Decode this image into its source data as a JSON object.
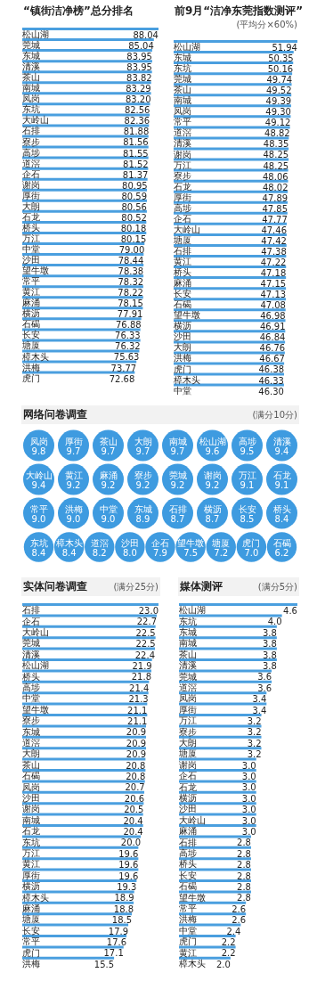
{
  "chart_data": [
    {
      "type": "bar",
      "orientation": "horizontal",
      "title": "“镇街洁净榜”总分排名",
      "color": "#4a9fdf",
      "categories": [
        "松山湖",
        "莞城",
        "东城",
        "清溪",
        "茶山",
        "南城",
        "凤岗",
        "东坑",
        "大岭山",
        "石排",
        "寮步",
        "高埗",
        "道滘",
        "企石",
        "谢岗",
        "厚街",
        "大朗",
        "石龙",
        "桥头",
        "万江",
        "中堂",
        "沙田",
        "望牛墩",
        "常平",
        "黄江",
        "麻涌",
        "横沥",
        "石碣",
        "长安",
        "塘厦",
        "樟木头",
        "洪梅",
        "虎门"
      ],
      "values": [
        88.04,
        85.04,
        83.95,
        83.95,
        83.82,
        83.29,
        83.2,
        82.56,
        82.36,
        81.88,
        81.56,
        81.55,
        81.52,
        81.37,
        80.95,
        80.59,
        80.56,
        80.52,
        80.18,
        80.15,
        79.0,
        78.44,
        78.38,
        78.32,
        78.22,
        78.15,
        77.91,
        76.88,
        76.33,
        76.32,
        75.63,
        73.77,
        72.68
      ],
      "value_labels": [
        "88.04",
        "85.04",
        "83.95",
        "83.95",
        "83.82",
        "83.29",
        "83.20",
        "82.56",
        "82.36",
        "81.88",
        "81.56",
        "81.55",
        "81.52",
        "81.37",
        "80.95",
        "80.59",
        "80.56",
        "80.52",
        "80.18",
        "80.15",
        "79.00",
        "78.44",
        "78.38",
        "78.32",
        "78.22",
        "78.15",
        "77.91",
        "76.88",
        "76.33",
        "76.32",
        "75.63",
        "73.77",
        "72.68"
      ]
    },
    {
      "type": "bar",
      "orientation": "horizontal",
      "title": "前9月“洁净东莞指数测评”",
      "subtitle": "(平均分×60%)",
      "color": "#4a9fdf",
      "categories": [
        "松山湖",
        "东城",
        "东坑",
        "莞城",
        "茶山",
        "南城",
        "凤岗",
        "常平",
        "道滘",
        "清溪",
        "谢岗",
        "万江",
        "寮步",
        "石龙",
        "厚街",
        "高埗",
        "企石",
        "大岭山",
        "塘厦",
        "石排",
        "黄江",
        "桥头",
        "麻涌",
        "长安",
        "石碣",
        "望牛墩",
        "横沥",
        "沙田",
        "大朗",
        "洪梅",
        "虎门",
        "樟木头",
        "中堂"
      ],
      "values": [
        51.94,
        50.35,
        50.16,
        49.74,
        49.52,
        49.39,
        49.3,
        49.12,
        48.82,
        48.35,
        48.25,
        48.25,
        48.06,
        48.02,
        47.89,
        47.85,
        47.77,
        47.46,
        47.42,
        47.38,
        47.22,
        47.18,
        47.15,
        47.13,
        47.08,
        46.98,
        46.91,
        46.84,
        46.76,
        46.67,
        46.38,
        46.33,
        46.3
      ],
      "value_labels": [
        "51.94",
        "50.35",
        "50.16",
        "49.74",
        "49.52",
        "49.39",
        "49.30",
        "49.12",
        "48.82",
        "48.35",
        "48.25",
        "48.25",
        "48.06",
        "48.02",
        "47.89",
        "47.85",
        "47.77",
        "47.46",
        "47.42",
        "47.38",
        "47.22",
        "47.18",
        "47.15",
        "47.13",
        "47.08",
        "46.98",
        "46.91",
        "46.84",
        "46.76",
        "46.67",
        "46.38",
        "46.33",
        "46.30"
      ]
    },
    {
      "type": "other",
      "title": "网络问卷调查",
      "subtitle": "(满分10分)",
      "color": "#3e9be0",
      "categories": [
        "凤岗",
        "厚街",
        "茶山",
        "大朗",
        "南城",
        "松山湖",
        "高埗",
        "清溪",
        "大岭山",
        "黄江",
        "麻涌",
        "寮步",
        "莞城",
        "谢岗",
        "万江",
        "石龙",
        "常平",
        "洪梅",
        "中堂",
        "东城",
        "石排",
        "横沥",
        "长安",
        "桥头",
        "东坑",
        "樟木头",
        "道滘",
        "沙田",
        "企石",
        "望牛墩",
        "塘厦",
        "虎门",
        "石碣"
      ],
      "values": [
        9.8,
        9.7,
        9.7,
        9.7,
        9.7,
        9.6,
        9.5,
        9.4,
        9.4,
        9.2,
        9.2,
        9.2,
        9.2,
        9.2,
        9.1,
        9.1,
        9.0,
        9.0,
        9.0,
        8.9,
        8.7,
        8.7,
        8.5,
        8.4,
        8.4,
        8.4,
        8.2,
        8.0,
        7.9,
        7.5,
        7.2,
        7.0,
        6.2
      ],
      "value_labels": [
        "9.8",
        "9.7",
        "9.7",
        "9.7",
        "9.7",
        "9.6",
        "9.5",
        "9.4",
        "9.4",
        "9.2",
        "9.2",
        "9.2",
        "9.2",
        "9.2",
        "9.1",
        "9.1",
        "9.0",
        "9.0",
        "9.0",
        "8.9",
        "8.7",
        "8.7",
        "8.5",
        "8.4",
        "8.4",
        "8.4",
        "8.2",
        "8.0",
        "7.9",
        "7.5",
        "7.2",
        "7.0",
        "6.2"
      ]
    },
    {
      "type": "bar",
      "orientation": "horizontal",
      "title": "实体问卷调查",
      "subtitle": "(满分25分)",
      "color": "#4a9fdf",
      "categories": [
        "石排",
        "企石",
        "大岭山",
        "莞城",
        "清溪",
        "松山湖",
        "桥头",
        "高埗",
        "中堂",
        "望牛墩",
        "寮步",
        "东城",
        "道滘",
        "大朗",
        "茶山",
        "石碣",
        "凤岗",
        "沙田",
        "谢岗",
        "南城",
        "石龙",
        "东坑",
        "万江",
        "黄江",
        "厚街",
        "横沥",
        "樟木头",
        "麻涌",
        "塘厦",
        "长安",
        "常平",
        "虎门",
        "洪梅"
      ],
      "values": [
        23.0,
        22.7,
        22.5,
        22.5,
        22.4,
        21.9,
        21.8,
        21.4,
        21.3,
        21.1,
        21.1,
        20.9,
        20.9,
        20.9,
        20.8,
        20.8,
        20.7,
        20.6,
        20.5,
        20.4,
        20.4,
        20.0,
        19.6,
        19.6,
        19.6,
        19.3,
        18.9,
        18.8,
        18.5,
        17.9,
        17.6,
        17.1,
        15.5
      ],
      "value_labels": [
        "23.0",
        "22.7",
        "22.5",
        "22.5",
        "22.4",
        "21.9",
        "21.8",
        "21.4",
        "21.3",
        "21.1",
        "21.1",
        "20.9",
        "20.9",
        "20.9",
        "20.8",
        "20.8",
        "20.7",
        "20.6",
        "20.5",
        "20.4",
        "20.4",
        "20.0",
        "19.6",
        "19.6",
        "19.6",
        "19.3",
        "18.9",
        "18.8",
        "18.5",
        "17.9",
        "17.6",
        "17.1",
        "15.5"
      ]
    },
    {
      "type": "bar",
      "orientation": "horizontal",
      "title": "媒体测评",
      "subtitle": "(满分5分)",
      "color": "#4a9fdf",
      "categories": [
        "松山湖",
        "东坑",
        "东城",
        "南城",
        "茶山",
        "清溪",
        "莞城",
        "道滘",
        "凤岗",
        "厚街",
        "万江",
        "寮步",
        "大朗",
        "塘厦",
        "谢岗",
        "企石",
        "石龙",
        "横沥",
        "沙田",
        "大岭山",
        "麻涌",
        "石排",
        "高埗",
        "桥头",
        "长安",
        "石碣",
        "望牛墩",
        "常平",
        "洪梅",
        "中堂",
        "虎门",
        "黄江",
        "樟木头"
      ],
      "values": [
        4.6,
        4.0,
        3.8,
        3.8,
        3.8,
        3.8,
        3.6,
        3.6,
        3.4,
        3.4,
        3.2,
        3.2,
        3.2,
        3.2,
        3.0,
        3.0,
        3.0,
        3.0,
        3.0,
        3.0,
        3.0,
        2.8,
        2.8,
        2.8,
        2.8,
        2.8,
        2.8,
        2.6,
        2.6,
        2.4,
        2.2,
        2.2,
        2.0
      ],
      "value_labels": [
        "4.6",
        "4.0",
        "3.8",
        "3.8",
        "3.8",
        "3.8",
        "3.6",
        "3.6",
        "3.4",
        "3.4",
        "3.2",
        "3.2",
        "3.2",
        "3.2",
        "3.0",
        "3.0",
        "3.0",
        "3.0",
        "3.0",
        "3.0",
        "3.0",
        "2.8",
        "2.8",
        "2.8",
        "2.8",
        "2.8",
        "2.8",
        "2.6",
        "2.6",
        "2.4",
        "2.2",
        "2.2",
        "2.0"
      ]
    }
  ]
}
